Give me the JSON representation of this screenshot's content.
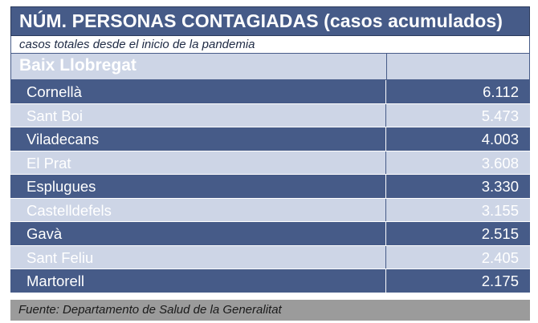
{
  "title": "NÚM. PERSONAS CONTAGIADAS (casos acumulados)",
  "subtitle": "casos totales desde el inicio de la pandemia",
  "region": "Baix Llobregat",
  "rows": [
    {
      "name": "Cornellà",
      "value": "6.112"
    },
    {
      "name": "Sant Boi",
      "value": "5.473"
    },
    {
      "name": "Viladecans",
      "value": "4.003"
    },
    {
      "name": "El Prat",
      "value": "3.608"
    },
    {
      "name": "Esplugues",
      "value": "3.330"
    },
    {
      "name": "Castelldefels",
      "value": "3.155"
    },
    {
      "name": "Gavà",
      "value": "2.515"
    },
    {
      "name": "Sant Feliu",
      "value": "2.405"
    },
    {
      "name": "Martorell",
      "value": "2.175"
    }
  ],
  "source": "Fuente: Departamento de Salud de la Generalitat",
  "colors": {
    "dark_row": "#465b88",
    "light_row": "#cdd5e6",
    "footer": "#9b9b9b"
  }
}
